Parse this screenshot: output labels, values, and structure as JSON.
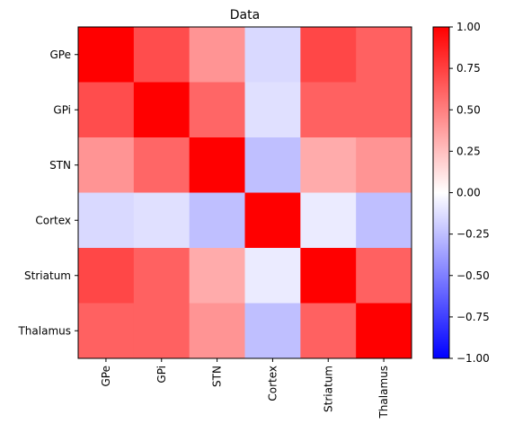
{
  "chart_data": {
    "type": "heatmap",
    "title": "Data",
    "xlabel": "",
    "ylabel": "",
    "x_categories": [
      "GPe",
      "GPi",
      "STN",
      "Cortex",
      "Striatum",
      "Thalamus"
    ],
    "y_categories": [
      "GPe",
      "GPi",
      "STN",
      "Cortex",
      "Striatum",
      "Thalamus"
    ],
    "values": [
      [
        1.0,
        0.7,
        0.42,
        -0.15,
        0.72,
        0.62
      ],
      [
        0.7,
        1.0,
        0.6,
        -0.12,
        0.62,
        0.62
      ],
      [
        0.42,
        0.6,
        1.0,
        -0.25,
        0.33,
        0.42
      ],
      [
        -0.15,
        -0.12,
        -0.25,
        1.0,
        -0.08,
        -0.25
      ],
      [
        0.72,
        0.62,
        0.33,
        -0.08,
        1.0,
        0.62
      ],
      [
        0.62,
        0.62,
        0.42,
        -0.25,
        0.62,
        1.0
      ]
    ],
    "colormap": "bwr",
    "vmin": -1.0,
    "vmax": 1.0,
    "colors": {
      "negative": "#0000ff",
      "neutral": "#ffffff",
      "positive": "#ff0000",
      "axis": "#000000"
    },
    "colorbar": {
      "ticks": [
        1.0,
        0.75,
        0.5,
        0.25,
        0.0,
        -0.25,
        -0.5,
        -0.75,
        -1.0
      ],
      "tick_labels": [
        "1.00",
        "0.75",
        "0.50",
        "0.25",
        "0.00",
        "−0.25",
        "−0.50",
        "−0.75",
        "−1.00"
      ]
    }
  }
}
